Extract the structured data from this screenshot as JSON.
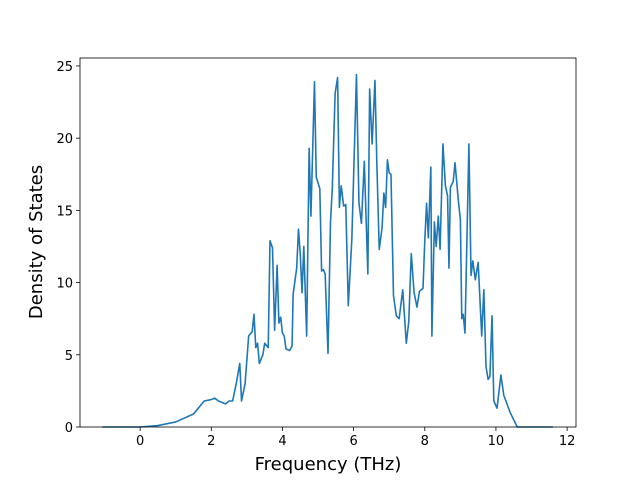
{
  "chart_data": {
    "type": "line",
    "xlabel": "Frequency (THz)",
    "ylabel": "Density of States",
    "xlim": [
      -1.69,
      12.25
    ],
    "ylim": [
      0,
      25.55
    ],
    "xticks": [
      0,
      2,
      4,
      6,
      8,
      10,
      12
    ],
    "yticks": [
      0,
      5,
      10,
      15,
      20,
      25
    ],
    "grid": false,
    "series": [
      {
        "color": "#1f77b4",
        "x": [
          -1.06,
          0,
          0.5,
          1.0,
          1.5,
          1.8,
          2.0,
          2.1,
          2.2,
          2.4,
          2.5,
          2.6,
          2.7,
          2.8,
          2.85,
          2.95,
          3.05,
          3.15,
          3.2,
          3.25,
          3.3,
          3.35,
          3.45,
          3.5,
          3.6,
          3.65,
          3.72,
          3.78,
          3.85,
          3.9,
          3.95,
          4.0,
          4.05,
          4.1,
          4.2,
          4.27,
          4.3,
          4.4,
          4.45,
          4.5,
          4.55,
          4.6,
          4.68,
          4.75,
          4.8,
          4.9,
          4.95,
          5.05,
          5.1,
          5.15,
          5.2,
          5.28,
          5.35,
          5.4,
          5.48,
          5.55,
          5.6,
          5.65,
          5.72,
          5.78,
          5.85,
          5.95,
          6.08,
          6.15,
          6.22,
          6.3,
          6.4,
          6.45,
          6.52,
          6.6,
          6.65,
          6.72,
          6.8,
          6.85,
          6.9,
          6.95,
          7.0,
          7.05,
          7.12,
          7.2,
          7.28,
          7.38,
          7.48,
          7.55,
          7.62,
          7.7,
          7.78,
          7.85,
          7.95,
          8.0,
          8.05,
          8.1,
          8.17,
          8.2,
          8.27,
          8.32,
          8.38,
          8.43,
          8.51,
          8.58,
          8.64,
          8.68,
          8.72,
          8.8,
          8.85,
          8.95,
          9.0,
          9.04,
          9.08,
          9.13,
          9.24,
          9.3,
          9.35,
          9.42,
          9.5,
          9.6,
          9.66,
          9.72,
          9.78,
          9.83,
          9.89,
          9.94,
          10.03,
          10.14,
          10.22,
          10.4,
          10.6,
          11.6
        ],
        "values": [
          0,
          0,
          0.1,
          0.35,
          0.9,
          1.8,
          1.9,
          2.0,
          1.8,
          1.6,
          1.8,
          1.8,
          3.0,
          4.4,
          1.8,
          3.0,
          6.3,
          6.6,
          7.8,
          5.5,
          5.8,
          4.4,
          5.0,
          5.8,
          5.5,
          12.9,
          12.4,
          6.7,
          11.2,
          7.2,
          7.6,
          6.5,
          6.3,
          5.4,
          5.3,
          5.6,
          9.2,
          11.0,
          13.7,
          12.0,
          9.3,
          12.5,
          6.3,
          19.3,
          14.6,
          23.9,
          17.3,
          16.5,
          10.8,
          10.9,
          10.6,
          5.1,
          14.2,
          16.5,
          23.1,
          24.2,
          15.2,
          16.7,
          15.3,
          15.4,
          8.4,
          13.0,
          24.4,
          15.5,
          14.1,
          18.4,
          10.6,
          23.4,
          19.6,
          24.0,
          18.5,
          12.3,
          13.8,
          16.2,
          15.2,
          18.5,
          17.6,
          17.5,
          9.1,
          7.7,
          7.5,
          9.5,
          5.8,
          7.3,
          12.0,
          9.3,
          8.3,
          9.4,
          9.6,
          12.9,
          15.5,
          13.1,
          18.0,
          6.3,
          14.2,
          12.5,
          14.6,
          12.3,
          19.6,
          16.7,
          16.0,
          11.0,
          16.6,
          17.0,
          18.3,
          15.5,
          14.4,
          7.5,
          7.8,
          6.5,
          19.6,
          10.5,
          11.5,
          10.2,
          11.4,
          6.3,
          9.5,
          4.2,
          3.3,
          3.5,
          7.7,
          1.8,
          1.3,
          3.6,
          2.2,
          1.0,
          0,
          0
        ]
      }
    ]
  }
}
